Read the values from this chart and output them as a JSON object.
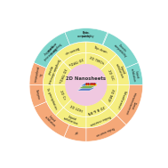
{
  "bg_color": "#ffffff",
  "pink_color": "#f0c8e0",
  "yellow_color": "#f5ee80",
  "cyan_color": "#7dd5cb",
  "salmon_color": "#f5a878",
  "white": "#ffffff",
  "r1": 0.33,
  "r2": 0.52,
  "r3": 0.7,
  "r4": 0.92,
  "inner_label": "2D Nanosheets",
  "mid1_segments": [
    {
      "label": "2D TMDs",
      "t1": 90,
      "t2": 135
    },
    {
      "label": "2D TMOs",
      "t1": 45,
      "t2": 90
    },
    {
      "label": "2D GC",
      "t1": 0,
      "t2": 45
    },
    {
      "label": "2D MOF",
      "t1": -45,
      "t2": 0
    },
    {
      "label": "2D B & BN",
      "t1": -90,
      "t2": -45
    },
    {
      "label": "2D LDH",
      "t1": -135,
      "t2": -90
    },
    {
      "label": "2D Cr",
      "t1": -180,
      "t2": -135
    },
    {
      "label": "2D TMDs",
      "t1": 135,
      "t2": 180
    }
  ],
  "mid2_segments": [
    {
      "label": "Bottom-up",
      "t1": 90,
      "t2": 135
    },
    {
      "label": "Top-down",
      "t1": 45,
      "t2": 90
    },
    {
      "label": "Liquid\nexfoliation",
      "t1": 0,
      "t2": 45
    },
    {
      "label": "Solvothermal",
      "t1": -45,
      "t2": 0
    },
    {
      "label": "Redox reaction",
      "t1": -90,
      "t2": -45
    },
    {
      "label": "Liquid\nexfoliation",
      "t1": -135,
      "t2": -90
    },
    {
      "label": "Co-precipitation",
      "t1": -180,
      "t2": -135
    },
    {
      "label": "Template-directed\ncrystal",
      "t1": 135,
      "t2": 180
    }
  ],
  "outer_segments": [
    {
      "label": "Hemo-\ncompatibility",
      "t1": 113,
      "t2": 157,
      "color": "cyan"
    },
    {
      "label": "Histo-\ncompatibility",
      "t1": 67,
      "t2": 113,
      "color": "cyan"
    },
    {
      "label": "Genetic\ncompatibility",
      "t1": 23,
      "t2": 67,
      "color": "cyan"
    },
    {
      "label": "Liquid\nexfoliation",
      "t1": 0,
      "t2": 23,
      "color": "cyan"
    },
    {
      "label": "Tumor\nmicroenvironment",
      "t1": -45,
      "t2": 0,
      "color": "salmon"
    },
    {
      "label": "Redox reaction",
      "t1": -90,
      "t2": -45,
      "color": "salmon"
    },
    {
      "label": "pH",
      "t1": -113,
      "t2": -90,
      "color": "salmon"
    },
    {
      "label": "Liquid\nexfoliation",
      "t1": -157,
      "t2": -113,
      "color": "salmon"
    },
    {
      "label": "Enzyme",
      "t1": -180,
      "t2": -157,
      "color": "salmon"
    },
    {
      "label": "Co-\nprecipitation",
      "t1": -203,
      "t2": -180,
      "color": "salmon"
    },
    {
      "label": "Template-directed\ncrystal",
      "t1": -248,
      "t2": -203,
      "color": "cyan"
    },
    {
      "label": "Cyto-\ntoxicity",
      "t1": -292,
      "t2": -248,
      "color": "cyan"
    }
  ]
}
